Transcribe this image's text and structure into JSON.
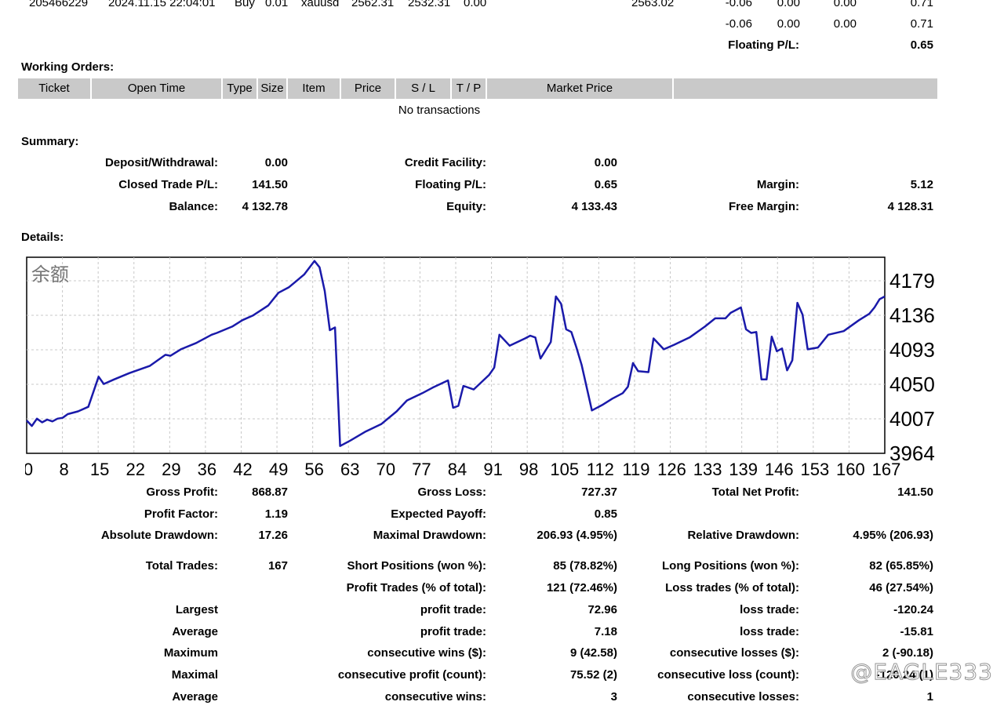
{
  "top_row": {
    "ticket": "205466229",
    "open_time": "2024.11.15 22:04:01",
    "type": "Buy",
    "size": "0.01",
    "item": "xauusd",
    "price": "2562.31",
    "sl": "2532.31",
    "tp": "0.00",
    "market_price": "2563.02",
    "commission": "-0.06",
    "taxes": "0.00",
    "swap": "0.00",
    "profit": "0.71"
  },
  "totals_row": {
    "commission": "-0.06",
    "taxes": "0.00",
    "swap": "0.00",
    "profit": "0.71"
  },
  "floating_row": {
    "label": "Floating P/L:",
    "value": "0.65"
  },
  "working_orders": {
    "title": "Working Orders:",
    "columns": [
      "Ticket",
      "Open Time",
      "Type",
      "Size",
      "Item",
      "Price",
      "S / L",
      "T / P",
      "Market Price",
      ""
    ],
    "empty_text": "No transactions"
  },
  "summary": {
    "title": "Summary:",
    "deposit_label": "Deposit/Withdrawal:",
    "deposit_value": "0.00",
    "credit_label": "Credit Facility:",
    "credit_value": "0.00",
    "closed_label": "Closed Trade P/L:",
    "closed_value": "141.50",
    "floating_label": "Floating P/L:",
    "floating_value": "0.65",
    "margin_label": "Margin:",
    "margin_value": "5.12",
    "balance_label": "Balance:",
    "balance_value": "4 132.78",
    "equity_label": "Equity:",
    "equity_value": "4 133.43",
    "free_margin_label": "Free Margin:",
    "free_margin_value": "4 128.31"
  },
  "details": {
    "title": "Details:"
  },
  "chart_data": {
    "type": "line",
    "title": "余额",
    "y_ticks": [
      "4179",
      "4136",
      "4093",
      "4050",
      "4007",
      "3964"
    ],
    "ylim": [
      3964,
      4179
    ],
    "x_ticks": [
      "0",
      "8",
      "15",
      "22",
      "29",
      "36",
      "42",
      "49",
      "56",
      "63",
      "70",
      "77",
      "84",
      "91",
      "98",
      "105",
      "112",
      "119",
      "126",
      "133",
      "139",
      "146",
      "153",
      "160",
      "167"
    ],
    "xlim": [
      0,
      167
    ],
    "grid": true,
    "series_color": "#1a1aaa",
    "x": [
      0,
      1,
      2,
      3,
      4,
      5,
      6,
      7,
      8,
      10,
      12,
      14,
      15,
      17,
      20,
      24,
      27,
      28,
      30,
      33,
      36,
      37,
      40,
      42,
      44,
      47,
      49,
      51,
      54,
      56,
      57,
      58,
      59,
      60,
      61,
      63,
      66,
      69,
      72,
      74,
      77,
      79,
      82,
      83,
      84,
      85,
      87,
      90,
      91,
      92,
      94,
      97,
      98,
      99,
      100,
      102,
      103,
      104,
      105,
      106,
      107,
      108,
      110,
      112,
      114,
      116,
      117,
      118,
      119,
      121,
      122,
      124,
      126,
      129,
      132,
      134,
      136,
      137,
      139,
      140,
      141,
      142,
      143,
      144,
      145,
      146,
      147,
      148,
      149,
      150,
      151,
      152,
      154,
      156,
      159,
      162,
      164,
      165,
      166,
      167
    ],
    "values": [
      4000,
      3994,
      4002,
      3998,
      4001,
      3999,
      4002,
      4003,
      4007,
      4010,
      4015,
      4048,
      4040,
      4045,
      4052,
      4060,
      4072,
      4071,
      4078,
      4085,
      4094,
      4096,
      4103,
      4110,
      4115,
      4126,
      4140,
      4146,
      4160,
      4175,
      4168,
      4142,
      4099,
      4102,
      3972,
      3978,
      3988,
      3996,
      4010,
      4022,
      4030,
      4036,
      4044,
      4014,
      4016,
      4038,
      4034,
      4050,
      4058,
      4094,
      4082,
      4090,
      4093,
      4091,
      4068,
      4086,
      4136,
      4128,
      4100,
      4097,
      4080,
      4061,
      4011,
      4017,
      4024,
      4030,
      4037,
      4063,
      4054,
      4053,
      4090,
      4078,
      4083,
      4091,
      4103,
      4112,
      4112,
      4118,
      4124,
      4100,
      4096,
      4097,
      4045,
      4045,
      4092,
      4076,
      4079,
      4055,
      4066,
      4129,
      4116,
      4078,
      4080,
      4094,
      4098,
      4110,
      4117,
      4124,
      4133,
      4136
    ]
  },
  "stats": {
    "gross_profit_label": "Gross Profit:",
    "gross_profit": "868.87",
    "gross_loss_label": "Gross Loss:",
    "gross_loss": "727.37",
    "total_net_label": "Total Net Profit:",
    "total_net": "141.50",
    "profit_factor_label": "Profit Factor:",
    "profit_factor": "1.19",
    "expected_payoff_label": "Expected Payoff:",
    "expected_payoff": "0.85",
    "abs_dd_label": "Absolute Drawdown:",
    "abs_dd": "17.26",
    "max_dd_label": "Maximal Drawdown:",
    "max_dd": "206.93 (4.95%)",
    "rel_dd_label": "Relative Drawdown:",
    "rel_dd": "4.95% (206.93)",
    "total_trades_label": "Total Trades:",
    "total_trades": "167",
    "short_label": "Short Positions (won %):",
    "short": "85 (78.82%)",
    "long_label": "Long Positions (won %):",
    "long": "82 (65.85%)",
    "profit_trades_label": "Profit Trades (% of total):",
    "profit_trades": "121 (72.46%)",
    "loss_trades_label": "Loss trades (% of total):",
    "loss_trades": "46 (27.54%)",
    "largest_label": "Largest",
    "largest_profit_label": "profit trade:",
    "largest_profit": "72.96",
    "largest_loss_label": "loss trade:",
    "largest_loss": "-120.24",
    "average_label": "Average",
    "average_profit_label": "profit trade:",
    "average_profit": "7.18",
    "average_loss_label": "loss trade:",
    "average_loss": "-15.81",
    "maximum_label": "Maximum",
    "max_wins_label": "consecutive wins ($):",
    "max_wins": "9 (42.58)",
    "max_losses_label": "consecutive losses ($):",
    "max_losses": "2 (-90.18)",
    "maximal_label": "Maximal",
    "maximal_profit_label": "consecutive profit (count):",
    "maximal_profit": "75.52 (2)",
    "maximal_loss_label": "consecutive loss (count):",
    "maximal_loss": "-120.24 (1)",
    "average2_label": "Average",
    "avg_wins_label": "consecutive wins:",
    "avg_wins": "3",
    "avg_losses_label": "consecutive losses:",
    "avg_losses": "1"
  },
  "watermark": "@EAGLE333"
}
